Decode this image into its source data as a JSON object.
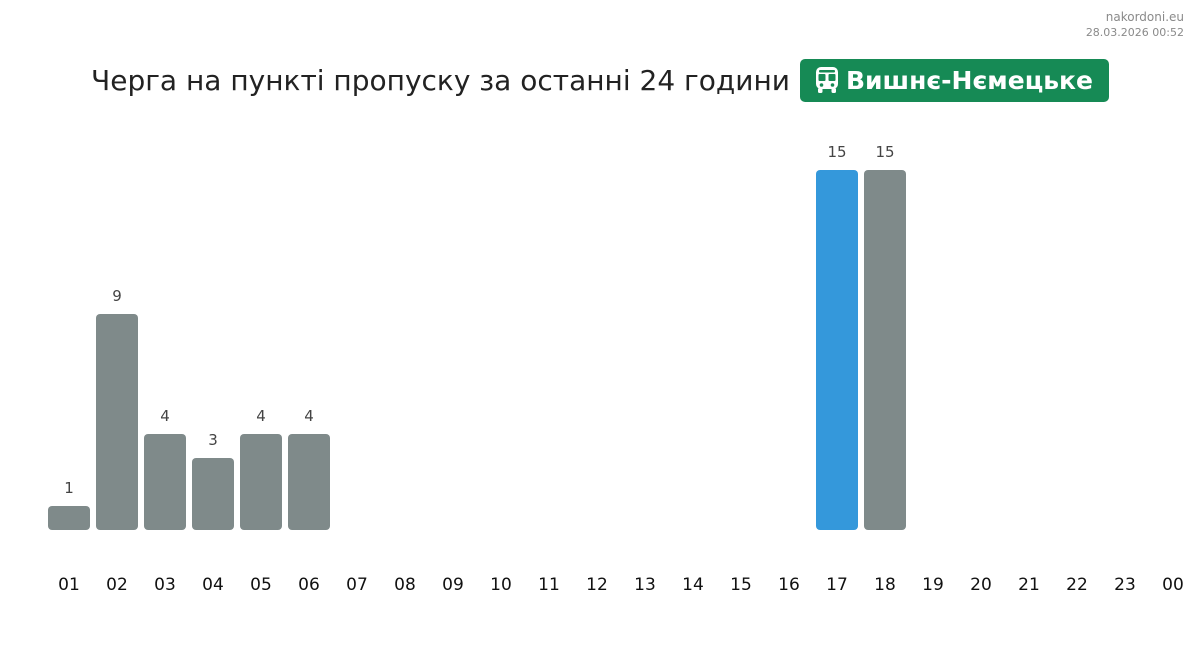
{
  "site": {
    "domain": "nakordoni.eu",
    "timestamp": "28.03.2026 00:52"
  },
  "header": {
    "title": "Черга на пункті пропуску за останні 24 години",
    "checkpoint": "Вишнє-Нємецьке",
    "checkpoint_icon": "bus-icon"
  },
  "colors": {
    "bar": "#7f8a8a",
    "highlight": "#3498db",
    "badge": "#168a55"
  },
  "chart_data": {
    "type": "bar",
    "title": "Черга на пункті пропуску за останні 24 години",
    "categories": [
      "01",
      "02",
      "03",
      "04",
      "05",
      "06",
      "07",
      "08",
      "09",
      "10",
      "11",
      "12",
      "13",
      "14",
      "15",
      "16",
      "17",
      "18",
      "19",
      "20",
      "21",
      "22",
      "23",
      "00"
    ],
    "values": [
      1,
      9,
      4,
      3,
      4,
      4,
      null,
      null,
      null,
      null,
      null,
      null,
      null,
      null,
      null,
      null,
      15,
      15,
      null,
      null,
      null,
      null,
      null,
      null
    ],
    "highlight_category": "17",
    "ylim": [
      0,
      15
    ],
    "grid": false,
    "legend": "none",
    "xlabel": "",
    "ylabel": ""
  }
}
